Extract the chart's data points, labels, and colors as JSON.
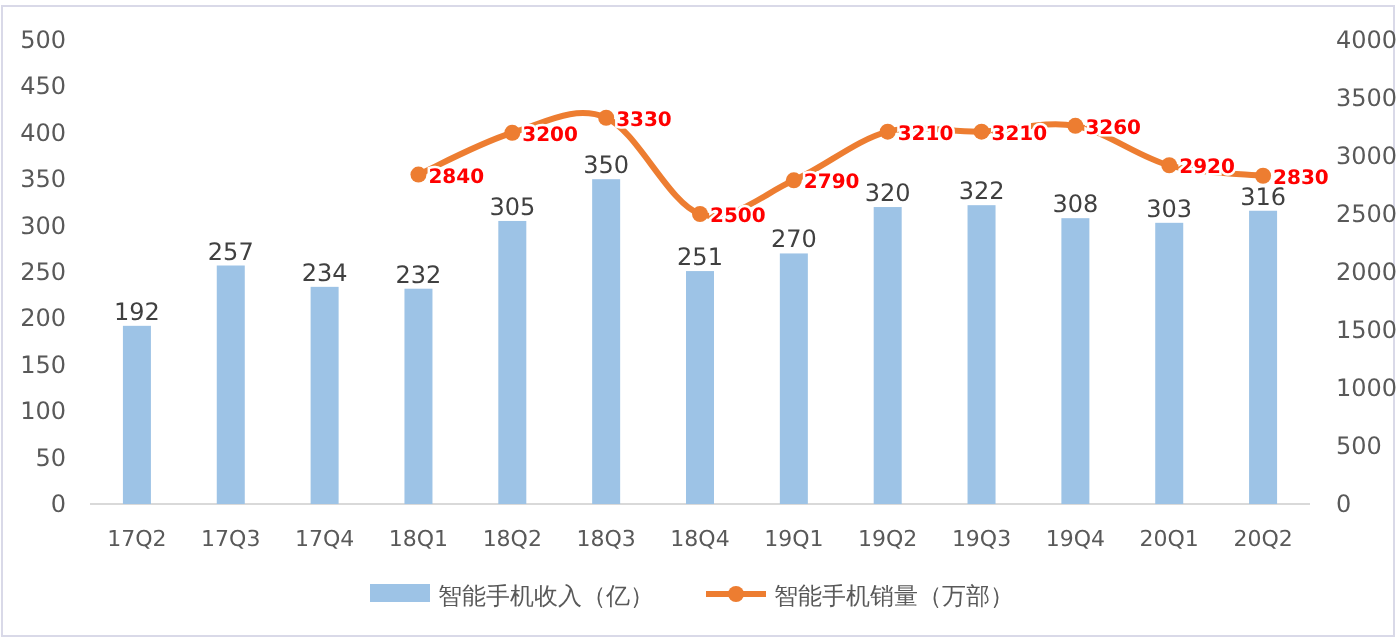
{
  "chart_data": {
    "type": "bar",
    "categories": [
      "17Q2",
      "17Q3",
      "17Q4",
      "18Q1",
      "18Q2",
      "18Q3",
      "18Q4",
      "19Q1",
      "19Q2",
      "19Q3",
      "19Q4",
      "20Q1",
      "20Q2"
    ],
    "series": [
      {
        "name": "智能手机收入（亿）",
        "color": "#9dc3e6",
        "values": [
          192,
          257,
          234,
          232,
          305,
          350,
          251,
          270,
          320,
          322,
          308,
          303,
          316
        ]
      },
      {
        "name": "智能手机销量（万部）",
        "type": "line",
        "axis": "y2",
        "color": "#ed7d31",
        "marker": "circle",
        "values": [
          null,
          null,
          null,
          2840,
          3200,
          3330,
          2500,
          2790,
          3210,
          3210,
          3260,
          2920,
          2830
        ]
      }
    ],
    "ylim": [
      0,
      500
    ],
    "yticks": [
      0,
      50,
      100,
      150,
      200,
      250,
      300,
      350,
      400,
      450,
      500
    ],
    "y2lim": [
      0,
      4000
    ],
    "y2ticks": [
      0,
      500,
      1000,
      1500,
      2000,
      2500,
      3000,
      3500,
      4000
    ],
    "data_labels": true,
    "legend": "bottom"
  }
}
